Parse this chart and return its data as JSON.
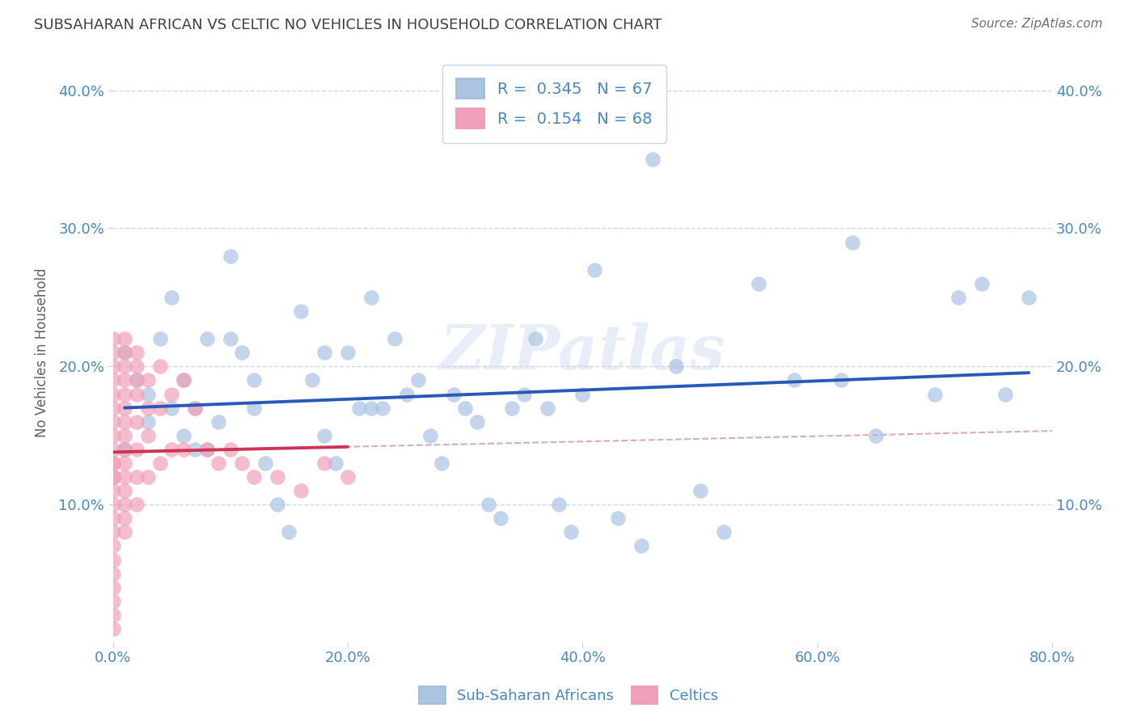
{
  "title": "SUBSAHARAN AFRICAN VS CELTIC NO VEHICLES IN HOUSEHOLD CORRELATION CHART",
  "source": "Source: ZipAtlas.com",
  "ylabel": "No Vehicles in Household",
  "watermark": "ZIPatlas",
  "legend_label1": "Sub-Saharan Africans",
  "legend_label2": "Celtics",
  "R1": 0.345,
  "N1": 67,
  "R2": 0.154,
  "N2": 68,
  "color1": "#aac4e2",
  "color2": "#f0a0b8",
  "line1_color": "#2858b8",
  "line2_color": "#cc3355",
  "dashed_color": "#d8a0b8",
  "xlim": [
    0.0,
    0.8
  ],
  "ylim": [
    0.0,
    0.42
  ],
  "xticks": [
    0.0,
    0.2,
    0.4,
    0.6,
    0.8
  ],
  "yticks": [
    0.1,
    0.2,
    0.3,
    0.4
  ],
  "background_color": "#ffffff",
  "title_color": "#404040",
  "axis_color": "#4488cc",
  "grid_color": "#d0d8e8",
  "subsaharan_x": [
    0.01,
    0.01,
    0.02,
    0.03,
    0.03,
    0.04,
    0.05,
    0.05,
    0.06,
    0.06,
    0.07,
    0.07,
    0.08,
    0.08,
    0.09,
    0.1,
    0.1,
    0.11,
    0.12,
    0.12,
    0.13,
    0.14,
    0.15,
    0.16,
    0.17,
    0.18,
    0.18,
    0.19,
    0.2,
    0.21,
    0.22,
    0.22,
    0.23,
    0.24,
    0.25,
    0.26,
    0.27,
    0.28,
    0.29,
    0.3,
    0.31,
    0.32,
    0.33,
    0.34,
    0.35,
    0.36,
    0.37,
    0.38,
    0.39,
    0.4,
    0.41,
    0.43,
    0.45,
    0.46,
    0.48,
    0.5,
    0.52,
    0.55,
    0.58,
    0.62,
    0.63,
    0.65,
    0.7,
    0.72,
    0.74,
    0.76,
    0.78
  ],
  "subsaharan_y": [
    0.14,
    0.21,
    0.19,
    0.18,
    0.16,
    0.22,
    0.25,
    0.17,
    0.19,
    0.15,
    0.17,
    0.14,
    0.22,
    0.14,
    0.16,
    0.28,
    0.22,
    0.21,
    0.19,
    0.17,
    0.13,
    0.1,
    0.08,
    0.24,
    0.19,
    0.15,
    0.21,
    0.13,
    0.21,
    0.17,
    0.17,
    0.25,
    0.17,
    0.22,
    0.18,
    0.19,
    0.15,
    0.13,
    0.18,
    0.17,
    0.16,
    0.1,
    0.09,
    0.17,
    0.18,
    0.22,
    0.17,
    0.1,
    0.08,
    0.18,
    0.27,
    0.09,
    0.07,
    0.35,
    0.2,
    0.11,
    0.08,
    0.26,
    0.19,
    0.19,
    0.29,
    0.15,
    0.18,
    0.25,
    0.26,
    0.18,
    0.25
  ],
  "celtic_x": [
    0.0,
    0.0,
    0.0,
    0.0,
    0.0,
    0.0,
    0.0,
    0.0,
    0.0,
    0.0,
    0.0,
    0.0,
    0.0,
    0.0,
    0.0,
    0.0,
    0.0,
    0.0,
    0.0,
    0.0,
    0.0,
    0.0,
    0.0,
    0.0,
    0.01,
    0.01,
    0.01,
    0.01,
    0.01,
    0.01,
    0.01,
    0.01,
    0.01,
    0.01,
    0.01,
    0.01,
    0.01,
    0.01,
    0.01,
    0.02,
    0.02,
    0.02,
    0.02,
    0.02,
    0.02,
    0.02,
    0.02,
    0.03,
    0.03,
    0.03,
    0.03,
    0.04,
    0.04,
    0.04,
    0.05,
    0.05,
    0.06,
    0.06,
    0.07,
    0.08,
    0.09,
    0.1,
    0.11,
    0.12,
    0.14,
    0.16,
    0.18,
    0.2
  ],
  "celtic_y": [
    0.22,
    0.21,
    0.2,
    0.19,
    0.18,
    0.17,
    0.16,
    0.15,
    0.14,
    0.13,
    0.12,
    0.11,
    0.1,
    0.09,
    0.08,
    0.07,
    0.06,
    0.05,
    0.04,
    0.03,
    0.02,
    0.01,
    0.13,
    0.12,
    0.22,
    0.21,
    0.2,
    0.19,
    0.18,
    0.17,
    0.16,
    0.15,
    0.14,
    0.13,
    0.12,
    0.11,
    0.1,
    0.09,
    0.08,
    0.21,
    0.2,
    0.19,
    0.18,
    0.16,
    0.14,
    0.12,
    0.1,
    0.19,
    0.17,
    0.15,
    0.12,
    0.2,
    0.17,
    0.13,
    0.18,
    0.14,
    0.19,
    0.14,
    0.17,
    0.14,
    0.13,
    0.14,
    0.13,
    0.12,
    0.12,
    0.11,
    0.13,
    0.12
  ]
}
